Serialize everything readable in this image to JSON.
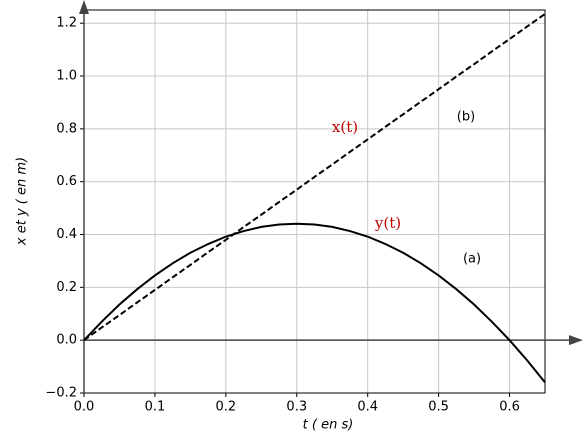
{
  "chart_data": {
    "type": "line",
    "xlabel": "t ( en s)",
    "ylabel": "x et y ( en m)",
    "x": [
      0,
      0.025,
      0.05,
      0.075,
      0.1,
      0.125,
      0.15,
      0.175,
      0.2,
      0.225,
      0.25,
      0.275,
      0.3,
      0.325,
      0.35,
      0.375,
      0.4,
      0.425,
      0.45,
      0.475,
      0.5,
      0.525,
      0.55,
      0.575,
      0.6,
      0.625,
      0.65
    ],
    "series": [
      {
        "name": "x(t)",
        "color": "#000000",
        "dashed": true,
        "values": [
          0,
          0.048,
          0.095,
          0.143,
          0.19,
          0.238,
          0.285,
          0.333,
          0.38,
          0.428,
          0.475,
          0.523,
          0.57,
          0.618,
          0.665,
          0.713,
          0.76,
          0.808,
          0.855,
          0.903,
          0.95,
          0.998,
          1.045,
          1.093,
          1.14,
          1.188,
          1.235
        ]
      },
      {
        "name": "y(t)",
        "color": "#000000",
        "dashed": false,
        "values": [
          0,
          0.07,
          0.135,
          0.193,
          0.245,
          0.291,
          0.331,
          0.364,
          0.392,
          0.413,
          0.429,
          0.438,
          0.441,
          0.438,
          0.429,
          0.413,
          0.392,
          0.364,
          0.331,
          0.291,
          0.245,
          0.193,
          0.135,
          0.07,
          0,
          -0.077,
          -0.16
        ]
      }
    ],
    "annotations": [
      "(b)",
      "(a)"
    ],
    "xlim": [
      0,
      0.65
    ],
    "ylim": [
      -0.2,
      1.25
    ],
    "xticks": [
      {
        "value": 0,
        "label": "0.0"
      },
      0.1,
      0.2,
      0.3,
      0.4,
      0.5,
      0.6
    ],
    "yticks": [
      {
        "value": -0.2,
        "label": "−0.2"
      },
      {
        "value": 0,
        "label": "0.0"
      },
      0.2,
      0.4,
      0.6,
      0.8,
      {
        "value": 1,
        "label": "1.0"
      },
      1.2
    ],
    "grid": true
  }
}
